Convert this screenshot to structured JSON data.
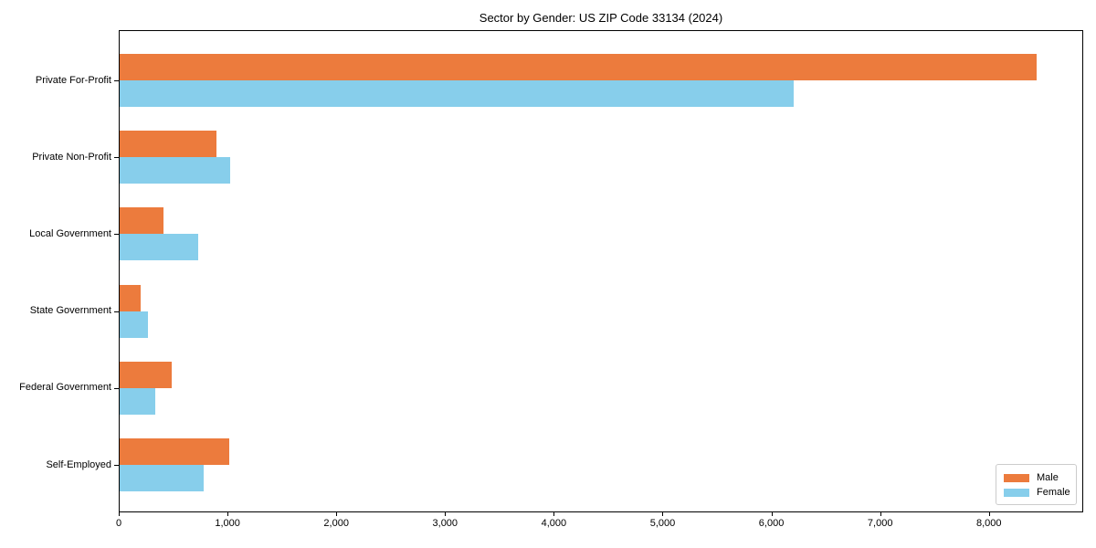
{
  "chart_data": {
    "type": "bar",
    "orientation": "horizontal",
    "title": "Sector by Gender: US ZIP Code 33134 (2024)",
    "categories": [
      "Private For-Profit",
      "Private Non-Profit",
      "Local Government",
      "State Government",
      "Federal Government",
      "Self-Employed"
    ],
    "series": [
      {
        "name": "Male",
        "color": "#ec7b3d",
        "values": [
          8430,
          890,
          405,
          195,
          475,
          1005
        ]
      },
      {
        "name": "Female",
        "color": "#87ceeb",
        "values": [
          6200,
          1020,
          725,
          260,
          330,
          775
        ]
      }
    ],
    "xlabel": "",
    "ylabel": "",
    "xlim": [
      0,
      8850
    ],
    "x_ticks": [
      0,
      1000,
      2000,
      3000,
      4000,
      5000,
      6000,
      7000,
      8000
    ],
    "x_tick_labels": [
      "0",
      "1,000",
      "2,000",
      "3,000",
      "4,000",
      "5,000",
      "6,000",
      "7,000",
      "8,000"
    ],
    "grid": false,
    "background_color": "#ffffff",
    "axis_color": "#000000",
    "legend": {
      "position": "lower right",
      "entries": [
        {
          "label": "Male",
          "color": "#ec7b3d"
        },
        {
          "label": "Female",
          "color": "#87ceeb"
        }
      ]
    }
  }
}
